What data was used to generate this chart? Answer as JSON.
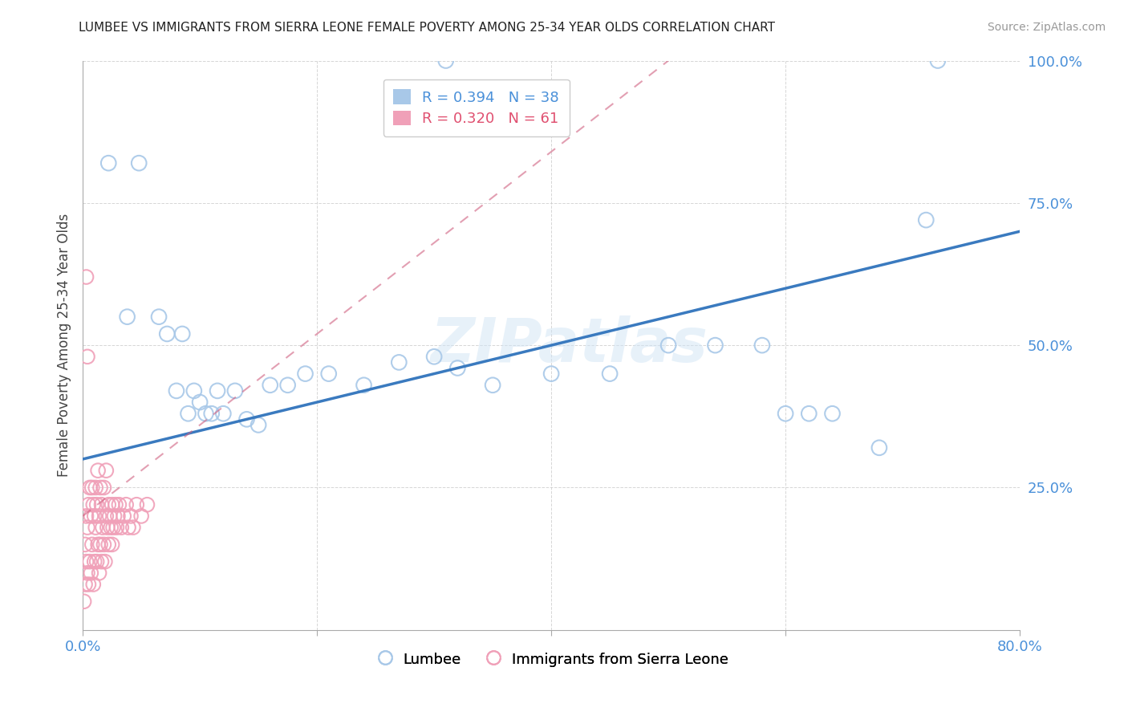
{
  "title": "LUMBEE VS IMMIGRANTS FROM SIERRA LEONE FEMALE POVERTY AMONG 25-34 YEAR OLDS CORRELATION CHART",
  "source": "Source: ZipAtlas.com",
  "ylabel": "Female Poverty Among 25-34 Year Olds",
  "xlim": [
    0.0,
    0.8
  ],
  "ylim": [
    0.0,
    1.0
  ],
  "legend_lumbee": "Lumbee",
  "legend_sierra": "Immigrants from Sierra Leone",
  "lumbee_R": "0.394",
  "lumbee_N": "38",
  "sierra_R": "0.320",
  "sierra_N": "61",
  "lumbee_color": "#a8c8e8",
  "sierra_color": "#f0a0b8",
  "lumbee_line_color": "#3a7abf",
  "sierra_line_color": "#d06080",
  "watermark": "ZIPatlas",
  "background_color": "#ffffff",
  "lumbee_x": [
    0.022,
    0.048,
    0.038,
    0.065,
    0.072,
    0.08,
    0.085,
    0.09,
    0.095,
    0.1,
    0.105,
    0.11,
    0.115,
    0.12,
    0.13,
    0.14,
    0.15,
    0.16,
    0.175,
    0.19,
    0.21,
    0.24,
    0.27,
    0.3,
    0.32,
    0.35,
    0.4,
    0.45,
    0.5,
    0.54,
    0.58,
    0.6,
    0.62,
    0.64,
    0.68,
    0.72,
    0.31,
    0.73
  ],
  "lumbee_y": [
    0.82,
    0.82,
    0.55,
    0.55,
    0.52,
    0.42,
    0.52,
    0.38,
    0.42,
    0.4,
    0.38,
    0.38,
    0.42,
    0.38,
    0.42,
    0.37,
    0.36,
    0.43,
    0.43,
    0.45,
    0.45,
    0.43,
    0.47,
    0.48,
    0.46,
    0.43,
    0.45,
    0.45,
    0.5,
    0.5,
    0.5,
    0.38,
    0.38,
    0.38,
    0.32,
    0.72,
    1.0,
    1.0
  ],
  "sierra_x": [
    0.001,
    0.002,
    0.002,
    0.003,
    0.003,
    0.004,
    0.004,
    0.005,
    0.005,
    0.006,
    0.006,
    0.007,
    0.007,
    0.008,
    0.008,
    0.009,
    0.009,
    0.01,
    0.01,
    0.011,
    0.011,
    0.012,
    0.012,
    0.013,
    0.013,
    0.014,
    0.014,
    0.015,
    0.015,
    0.016,
    0.016,
    0.017,
    0.018,
    0.018,
    0.019,
    0.02,
    0.02,
    0.021,
    0.022,
    0.022,
    0.023,
    0.024,
    0.025,
    0.025,
    0.026,
    0.027,
    0.028,
    0.029,
    0.03,
    0.031,
    0.033,
    0.035,
    0.037,
    0.039,
    0.041,
    0.043,
    0.046,
    0.05,
    0.055,
    0.003,
    0.004
  ],
  "sierra_y": [
    0.05,
    0.08,
    0.15,
    0.12,
    0.2,
    0.1,
    0.18,
    0.08,
    0.22,
    0.12,
    0.25,
    0.1,
    0.2,
    0.15,
    0.25,
    0.08,
    0.22,
    0.12,
    0.2,
    0.18,
    0.25,
    0.12,
    0.22,
    0.15,
    0.28,
    0.1,
    0.2,
    0.15,
    0.25,
    0.12,
    0.22,
    0.18,
    0.15,
    0.25,
    0.12,
    0.2,
    0.28,
    0.18,
    0.22,
    0.15,
    0.2,
    0.18,
    0.15,
    0.22,
    0.18,
    0.2,
    0.22,
    0.18,
    0.2,
    0.22,
    0.18,
    0.2,
    0.22,
    0.18,
    0.2,
    0.18,
    0.22,
    0.2,
    0.22,
    0.62,
    0.48
  ],
  "lumbee_trend_x0": 0.0,
  "lumbee_trend_y0": 0.3,
  "lumbee_trend_x1": 0.8,
  "lumbee_trend_y1": 0.7,
  "sierra_trend_x0": 0.0,
  "sierra_trend_y0": 0.2,
  "sierra_trend_x1": 0.5,
  "sierra_trend_y1": 1.0
}
